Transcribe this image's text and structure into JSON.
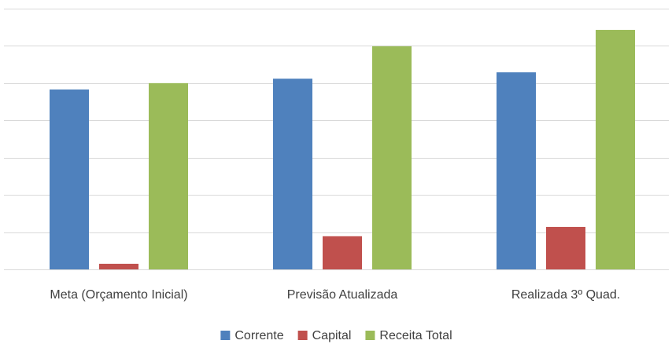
{
  "chart_data": {
    "type": "bar",
    "categories": [
      "Meta (Orçamento Inicial)",
      "Previsão Atualizada",
      "Realizada 3º Quad."
    ],
    "series": [
      {
        "name": "Corrente",
        "color": "#4f81bd",
        "values": [
          4.83,
          5.12,
          5.29
        ]
      },
      {
        "name": "Capital",
        "color": "#c0504d",
        "values": [
          0.15,
          0.89,
          1.14
        ]
      },
      {
        "name": "Receita Total",
        "color": "#9bbb59",
        "values": [
          5.0,
          5.99,
          6.43
        ]
      }
    ],
    "ylim": [
      0,
      7
    ],
    "yticks": [
      0,
      1,
      2,
      3,
      4,
      5,
      6,
      7
    ],
    "grid": true,
    "legend": "bottom"
  }
}
